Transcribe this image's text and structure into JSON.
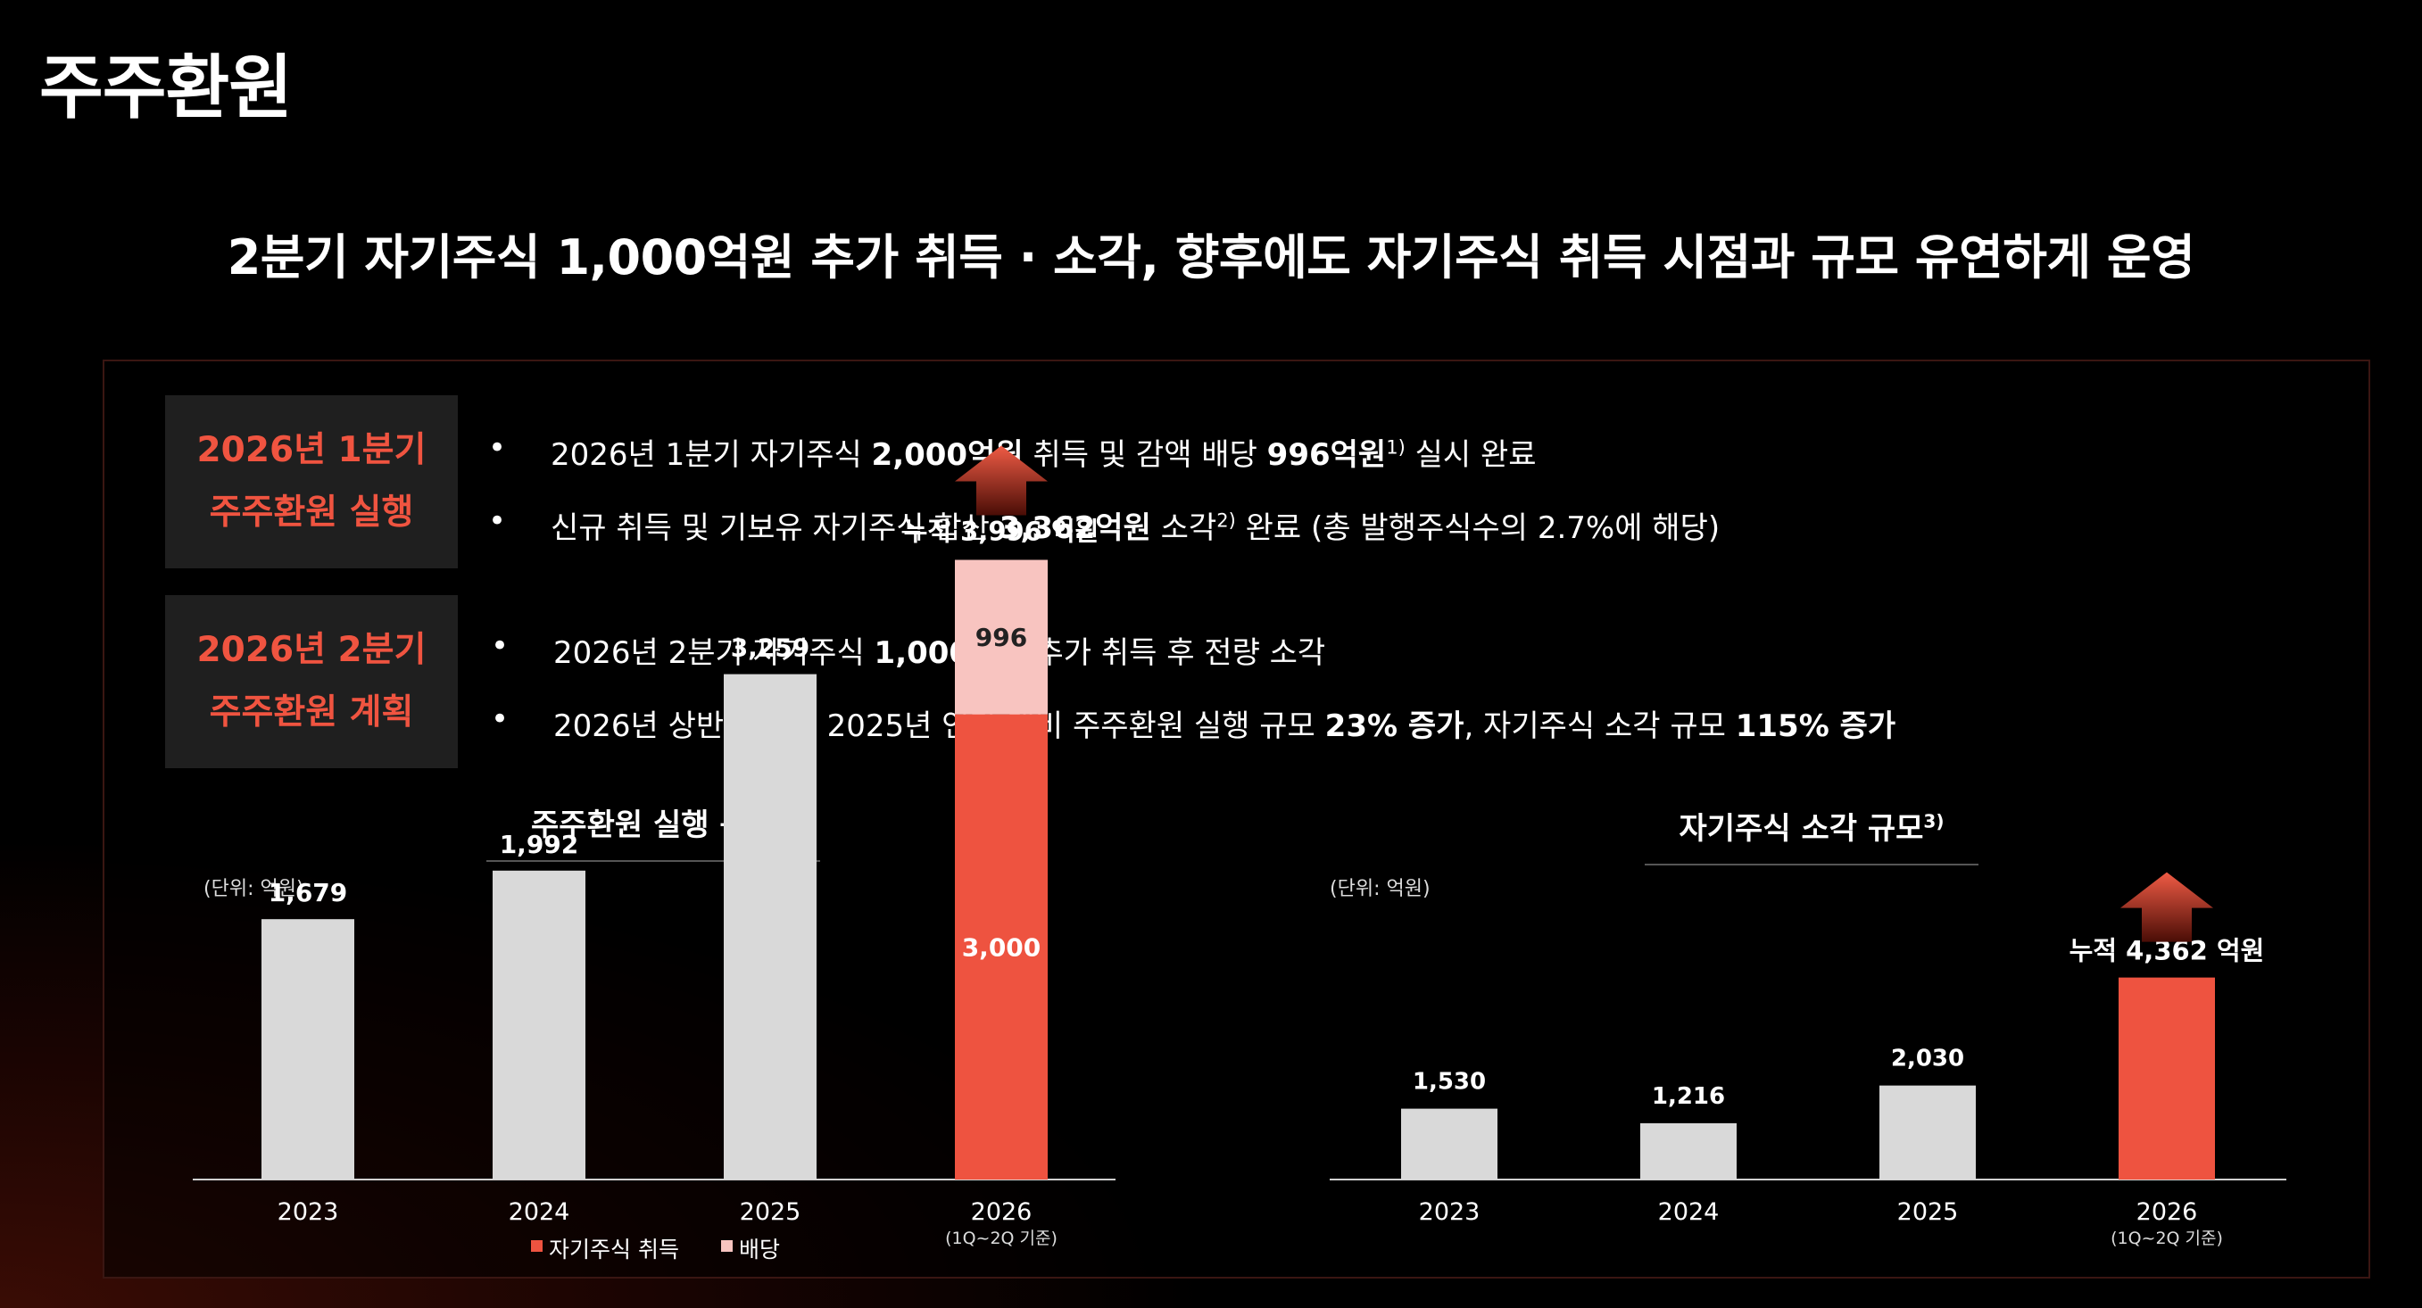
{
  "page_title": "주주환원",
  "headline": "2분기 자기주식 1,000억원 추가 취득 · 소각, 향후에도 자기주식 취득 시점과 규모 유연하게 운영",
  "sections": [
    {
      "label_line1": "2026년 1분기",
      "label_line2": "주주환원 실행",
      "bullets": [
        {
          "segments": [
            "2026년 1분기 자기주식 ",
            "2,000억원",
            " 취득 및 감액 배당 ",
            "996억원",
            "1)",
            " 실시 완료"
          ]
        },
        {
          "segments": [
            "신규 취득 및 기보유 자기주식 합산 ",
            "3,362억원",
            " 소각",
            "2)",
            " 완료  (총 발행주식수의 2.7%에 해당)"
          ]
        }
      ]
    },
    {
      "label_line1": "2026년 2분기",
      "label_line2": "주주환원 계획",
      "bullets": [
        {
          "segments": [
            "2026년 2분기 자기주식 ",
            "1,000억원",
            " 추가 취득 후 전량 소각"
          ]
        },
        {
          "segments": [
            "2026년 상반기 기준 2025년 연간 대비 주주환원 실행 규모 ",
            "23% 증가",
            ", 자기주식 소각 규모 ",
            "115% 증가"
          ]
        }
      ]
    }
  ],
  "bullet_marker": "•",
  "colors": {
    "accent": "#ee5340",
    "dividend": "#f8c4c0",
    "bar_gray": "#d9d9d9",
    "section_bg": "#1f1f1f"
  },
  "chart_data": [
    {
      "type": "bar",
      "title": "주주환원 실행 규모",
      "unit": "(단위: 억원)",
      "categories": [
        "2023",
        "2024",
        "2025",
        "2026"
      ],
      "category_notes": [
        "",
        "",
        "",
        "(1Q~2Q 기준)"
      ],
      "series": [
        {
          "name": "자기주식 취득",
          "values": [
            null,
            null,
            null,
            3000
          ]
        },
        {
          "name": "배당",
          "values": [
            null,
            null,
            null,
            996
          ]
        }
      ],
      "totals": [
        1679,
        1992,
        3259,
        3996
      ],
      "total_labels": [
        "1,679",
        "1,992",
        "3,259",
        ""
      ],
      "segment_labels": {
        "자기주식 취득": "3,000",
        "배당": "996"
      },
      "annotation": "누적 3,996 억원",
      "legend": [
        "자기주식 취득",
        "배당"
      ],
      "legend_position": "bottom",
      "ylim": [
        0,
        4400
      ],
      "grid": false
    },
    {
      "type": "bar",
      "title": "자기주식 소각 규모",
      "title_sup": "3)",
      "unit": "(단위: 억원)",
      "categories": [
        "2023",
        "2024",
        "2025",
        "2026"
      ],
      "category_notes": [
        "",
        "",
        "",
        "(1Q~2Q 기준)"
      ],
      "values": [
        1530,
        1216,
        2030,
        4362
      ],
      "value_labels": [
        "1,530",
        "1,216",
        "2,030",
        ""
      ],
      "annotation": "누적 4,362 억원",
      "ylim": [
        0,
        4900
      ],
      "grid": false
    }
  ]
}
